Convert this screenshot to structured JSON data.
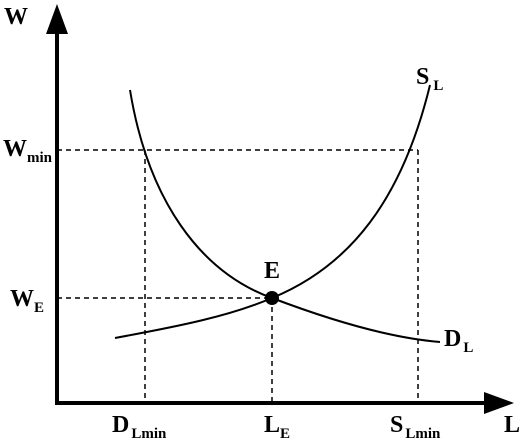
{
  "axes": {
    "y": {
      "text": "W"
    },
    "x": {
      "text": "L"
    }
  },
  "point": {
    "text": "E"
  },
  "curves": {
    "supply": {
      "text": "S",
      "sub": "L"
    },
    "demand": {
      "text": "D",
      "sub": "L"
    }
  },
  "y_labels": [
    {
      "text": "W",
      "sub": "min"
    },
    {
      "text": "W",
      "sub": "E"
    }
  ],
  "x_labels": [
    {
      "text": "D",
      "sub": "Lmin"
    },
    {
      "text": "L",
      "sub": "E"
    },
    {
      "text": "S",
      "sub": "Lmin"
    }
  ]
}
